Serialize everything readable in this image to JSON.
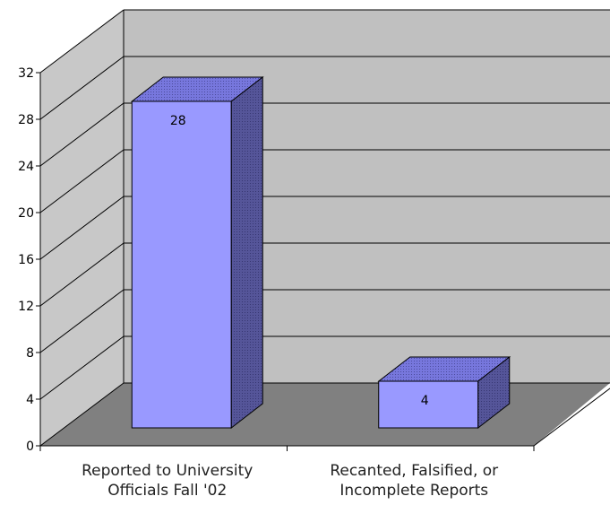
{
  "chart_data": {
    "type": "bar",
    "style": "3d-column",
    "title": "",
    "xlabel": "",
    "ylabel": "",
    "categories": [
      [
        "Reported to University",
        "Officials Fall '02"
      ],
      [
        "Recanted, Falsified, or",
        "Incomplete Reports"
      ]
    ],
    "values": [
      28,
      4
    ],
    "data_labels": [
      "28",
      "4"
    ],
    "ylim": [
      0,
      32
    ],
    "yticks": [
      "0",
      "4",
      "8",
      "12",
      "16",
      "20",
      "24",
      "28",
      "32"
    ],
    "grid": true,
    "legend": "none",
    "colors": {
      "bar_front": "#9999ff",
      "bar_top": "#7777dd",
      "bar_side": "#555599",
      "back_wall": "#c0c0c0",
      "side_wall": "#c8c8c8",
      "floor": "#808080",
      "gridline": "#000000"
    }
  }
}
